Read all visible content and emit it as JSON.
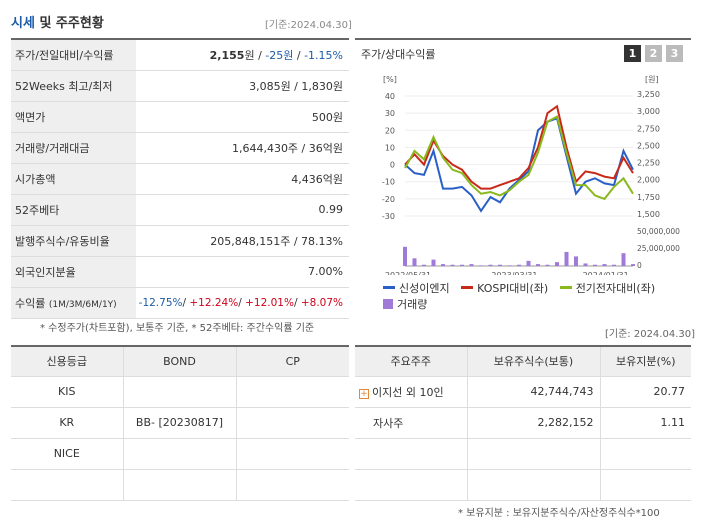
{
  "header": {
    "title_blue": "시세",
    "title_rest": " 및 주주현황",
    "date": "[기준:2024.04.30]"
  },
  "price_table": [
    {
      "label": "주가/전일대비/수익률",
      "value_main": "2,155",
      "unit": "원",
      "change": "-25원",
      "rate": "-1.15%"
    },
    {
      "label": "52Weeks 최고/최저",
      "value": "3,085원 / 1,830원"
    },
    {
      "label": "액면가",
      "value": "500원"
    },
    {
      "label": "거래량/거래대금",
      "value": "1,644,430주 / 36억원"
    },
    {
      "label": "시가총액",
      "value": "4,436억원"
    },
    {
      "label": "52주베타",
      "value": "0.99"
    },
    {
      "label": "발행주식수/유동비율",
      "value": "205,848,151주 / 78.13%"
    },
    {
      "label": "외국인지분율",
      "value": "7.00%"
    },
    {
      "label": "수익률",
      "label_sub": "(1M/3M/6M/1Y)",
      "r1": "-12.75%",
      "r2": "+12.24%",
      "r3": "+12.01%",
      "r4": "+8.07%"
    }
  ],
  "footnote_left": "* 수정주가(차트포함), 보통주 기준, * 52주베타: 주간수익률 기준",
  "chart": {
    "title": "주가/상대수익률",
    "pages": [
      "1",
      "2",
      "3"
    ],
    "left_unit": "[%]",
    "right_unit": "[원]",
    "legend": [
      "신성이엔지",
      "KOSPI대비(좌)",
      "전기전자대비(좌)",
      "거래량"
    ],
    "colors": {
      "stock": "#2a5fc8",
      "kospi": "#c82a1a",
      "elec": "#8ab81e",
      "volume": "#a07ad8"
    }
  },
  "chart_data": {
    "type": "line",
    "x_labels": [
      "2022/05/31",
      "2023/03/31",
      "2024/01/31"
    ],
    "y_left_ticks": [
      "40",
      "30",
      "20",
      "10",
      "0",
      "-10",
      "-20",
      "-30"
    ],
    "y_right_ticks": [
      "3,250",
      "3,000",
      "2,750",
      "2,500",
      "2,250",
      "2,000",
      "1,750",
      "1,500"
    ],
    "vol_ticks": [
      "50,000,000",
      "25,000,000",
      "0"
    ],
    "series": [
      {
        "name": "신성이엔지",
        "values": [
          0,
          -5,
          -6,
          8,
          -14,
          -14,
          -13,
          -18,
          -27,
          -19,
          -22,
          -14,
          -9,
          -4,
          20,
          25,
          27,
          5,
          -17,
          -10,
          -8,
          -11,
          -12,
          8,
          -3
        ]
      },
      {
        "name": "KOSPI대비(좌)",
        "values": [
          0,
          6,
          0,
          14,
          5,
          0,
          -3,
          -10,
          -14,
          -14,
          -12,
          -10,
          -8,
          -2,
          10,
          30,
          34,
          10,
          -10,
          -4,
          -5,
          -7,
          -8,
          4,
          -5
        ]
      },
      {
        "name": "전기전자대비(좌)",
        "values": [
          -2,
          8,
          3,
          16,
          4,
          -3,
          -5,
          -12,
          -17,
          -16,
          -18,
          -15,
          -10,
          -6,
          7,
          25,
          28,
          7,
          -12,
          -12,
          -18,
          -20,
          -13,
          -8,
          -17
        ]
      },
      {
        "name": "거래량",
        "values": [
          30,
          12,
          2,
          10,
          3,
          2,
          2,
          3,
          1,
          2,
          2,
          1,
          2,
          8,
          3,
          2,
          6,
          22,
          15,
          4,
          2,
          3,
          2,
          20,
          3
        ]
      }
    ]
  },
  "date2": "[기준: 2024.04.30]",
  "credit": {
    "headers": [
      "신용등급",
      "BOND",
      "CP"
    ],
    "rows": [
      [
        "KIS",
        "",
        ""
      ],
      [
        "KR",
        "BB-  [20230817]",
        ""
      ],
      [
        "NICE",
        "",
        ""
      ],
      [
        "",
        "",
        ""
      ]
    ]
  },
  "holders": {
    "headers": [
      "주요주주",
      "보유주식수(보통)",
      "보유지분(%)"
    ],
    "rows": [
      {
        "name": "이지선 외 10인",
        "shares": "42,744,743",
        "pct": "20.77",
        "plus": true
      },
      {
        "name": "자사주",
        "shares": "2,282,152",
        "pct": "1.11",
        "plus": false
      },
      {
        "name": "",
        "shares": "",
        "pct": "",
        "plus": false
      },
      {
        "name": "",
        "shares": "",
        "pct": "",
        "plus": false
      }
    ]
  },
  "footnote_right": "* 보유지분 : 보유지분주식수/자산정주식수*100"
}
